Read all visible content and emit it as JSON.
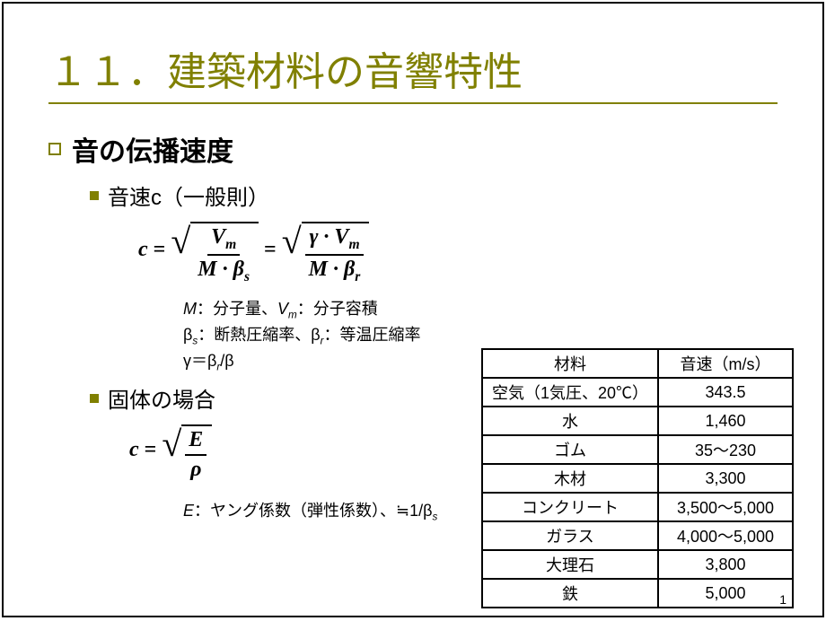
{
  "slide": {
    "title": "１１．建築材料の音響特性",
    "title_color": "#808000",
    "rule_color": "#808000",
    "background": "#ffffff"
  },
  "section": {
    "heading": "音の伝播速度",
    "sub1": "音速c（一般則）",
    "sub2": "固体の場合"
  },
  "formula1": {
    "lhs": "c",
    "num1_a": "V",
    "num1_a_sub": "m",
    "den1_a": "M · β",
    "den1_a_sub": "s",
    "num2_pref": "γ · ",
    "num2_a": "V",
    "num2_a_sub": "m",
    "den2_a": "M · β",
    "den2_a_sub": "r"
  },
  "legend1": {
    "line1_a": "M",
    "line1_b": "：分子量、",
    "line1_c": "V",
    "line1_c_sub": "m",
    "line1_d": "：分子容積",
    "line2_a": "β",
    "line2_a_sub": "s",
    "line2_b": "：断熱圧縮率、",
    "line2_c": "β",
    "line2_c_sub": "r",
    "line2_d": "：等温圧縮率",
    "line3_a": "γ＝β",
    "line3_a_sub": "r",
    "line3_b": "/β"
  },
  "formula2": {
    "lhs": "c",
    "num": "E",
    "den": "ρ"
  },
  "legend2": {
    "a": "E",
    "b": "：ヤング係数（弾性係数）、≒1/β",
    "b_sub": "s"
  },
  "table": {
    "columns": [
      "材料",
      "音速（m/s）"
    ],
    "rows": [
      [
        "空気（1気圧、20℃）",
        "343.5"
      ],
      [
        "水",
        "1,460"
      ],
      [
        "ゴム",
        "35～230"
      ],
      [
        "木材",
        "3,300"
      ],
      [
        "コンクリート",
        "3,500～5,000"
      ],
      [
        "ガラス",
        "4,000～5,000"
      ],
      [
        "大理石",
        "3,800"
      ],
      [
        "鉄",
        "5,000"
      ]
    ],
    "col_widths": [
      "170px",
      "150px"
    ],
    "border_color": "#000000",
    "font_size": 18
  },
  "page_number": "1"
}
